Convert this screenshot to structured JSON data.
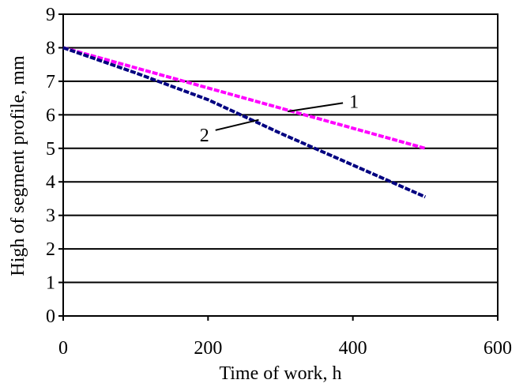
{
  "chart_data": {
    "type": "line",
    "title": "",
    "xlabel": "Time of work, h",
    "ylabel": "High of segment profile, mm",
    "xlim": [
      0,
      600
    ],
    "ylim": [
      0,
      9
    ],
    "x_ticks": [
      "0",
      "200",
      "400",
      "600"
    ],
    "y_ticks": [
      "0",
      "1",
      "2",
      "3",
      "4",
      "5",
      "6",
      "7",
      "8",
      "9"
    ],
    "grid": "horizontal",
    "legend": "none",
    "series": [
      {
        "label": "1",
        "color": "#ff00ff",
        "x": [
          0,
          500
        ],
        "y": [
          8.0,
          5.0
        ],
        "label_at": {
          "x": 395,
          "y": 6.4
        },
        "pointer_to": {
          "x": 310,
          "y": 6.1
        }
      },
      {
        "label": "2",
        "color": "#000080",
        "x": [
          0,
          100,
          200,
          300,
          400,
          500
        ],
        "y": [
          8.0,
          7.25,
          6.45,
          5.45,
          4.5,
          3.55
        ],
        "label_at": {
          "x": 195,
          "y": 5.4
        },
        "pointer_to": {
          "x": 270,
          "y": 5.85
        }
      }
    ]
  }
}
